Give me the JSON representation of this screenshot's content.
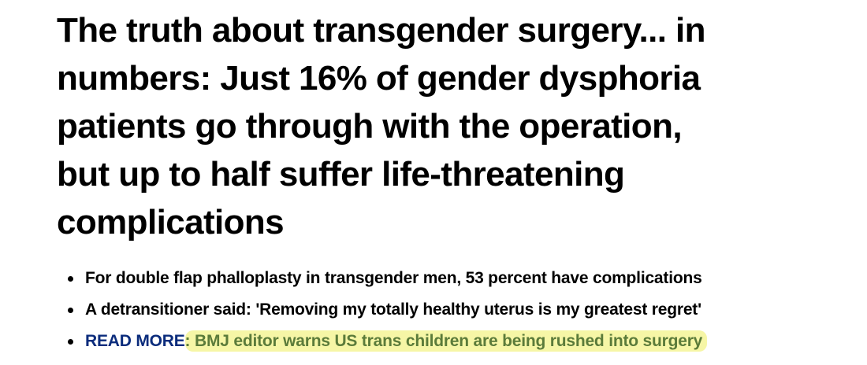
{
  "headline": {
    "lines": [
      "The truth about transgender surgery... in",
      "numbers: Just 16% of gender dysphoria",
      "patients go through with the operation,",
      "but up to half suffer life-threatening",
      "complications"
    ]
  },
  "bullets": [
    "For double flap phalloplasty in transgender men, 53 percent have complications",
    "A detransitioner said: 'Removing my totally healthy uterus is my greatest regret'"
  ],
  "read_more": {
    "label": "READ MORE",
    "text": ": BMJ editor warns US trans children are being rushed into surgery"
  }
}
